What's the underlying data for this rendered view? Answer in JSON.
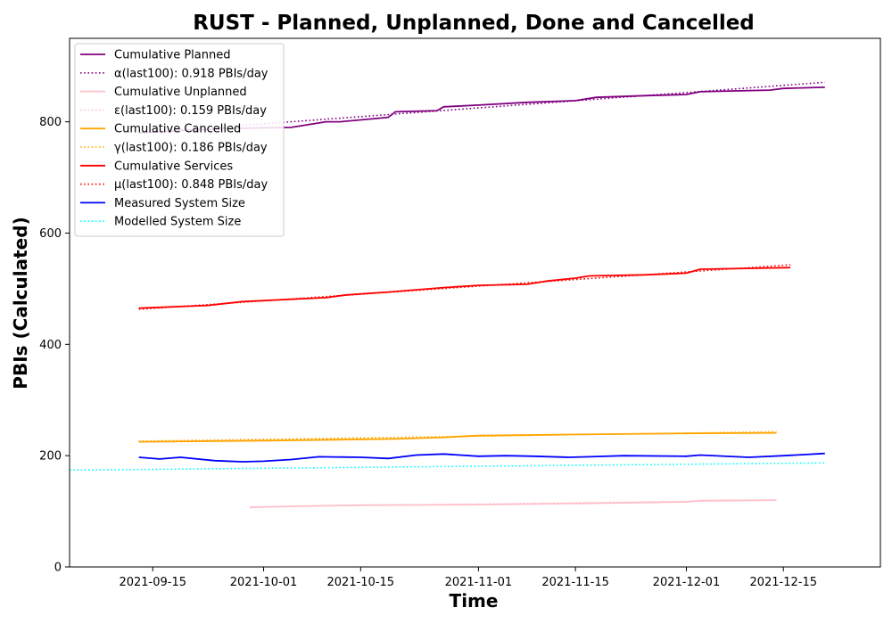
{
  "chart_data": {
    "type": "line",
    "title": "RUST - Planned, Unplanned, Done  and Cancelled",
    "xlabel": "Time",
    "ylabel": "PBIs (Calculated)",
    "xlim": [
      "2021-09-03",
      "2021-12-29"
    ],
    "ylim": [
      0,
      950
    ],
    "x_ticks": [
      "2021-09-15",
      "2021-10-01",
      "2021-10-15",
      "2021-11-01",
      "2021-11-15",
      "2021-12-01",
      "2021-12-15"
    ],
    "y_ticks": [
      0,
      200,
      400,
      600,
      800
    ],
    "grid": false,
    "legend_position": "top-left",
    "series": [
      {
        "name": "Cumulative Planned",
        "color": "#800080",
        "style": "solid",
        "x": [
          "2021-09-13",
          "2021-09-20",
          "2021-09-26",
          "2021-10-05",
          "2021-10-10",
          "2021-10-12",
          "2021-10-19",
          "2021-10-20",
          "2021-10-26",
          "2021-10-27",
          "2021-11-01",
          "2021-11-08",
          "2021-11-15",
          "2021-11-18",
          "2021-11-25",
          "2021-12-01",
          "2021-12-03",
          "2021-12-13",
          "2021-12-15",
          "2021-12-21"
        ],
        "y": [
          780,
          785,
          788,
          790,
          800,
          800,
          808,
          818,
          820,
          827,
          830,
          835,
          838,
          844,
          847,
          849,
          854,
          857,
          860,
          862
        ]
      },
      {
        "name": "α(last100): 0.918 PBIs/day",
        "color": "#800080",
        "style": "dotted",
        "x": [
          "2021-09-23",
          "2021-12-21"
        ],
        "y": [
          789,
          871
        ]
      },
      {
        "name": "Cumulative Unplanned",
        "color": "#ffc0cb",
        "style": "solid",
        "x": [
          "2021-09-29",
          "2021-10-05",
          "2021-10-15",
          "2021-11-01",
          "2021-11-15",
          "2021-12-01",
          "2021-12-03",
          "2021-12-14"
        ],
        "y": [
          107,
          109,
          111,
          112,
          114,
          117,
          119,
          120
        ]
      },
      {
        "name": "ε(last100): 0.159 PBIs/day",
        "color": "#ffc0cb",
        "style": "dotted",
        "x": [
          "2021-09-29",
          "2021-12-14"
        ],
        "y": [
          108,
          120
        ]
      },
      {
        "name": "Cumulative Cancelled",
        "color": "#ffa500",
        "style": "solid",
        "x": [
          "2021-09-13",
          "2021-10-01",
          "2021-10-20",
          "2021-10-27",
          "2021-11-01",
          "2021-11-15",
          "2021-12-01",
          "2021-12-14"
        ],
        "y": [
          225,
          227,
          230,
          233,
          236,
          238,
          240,
          241
        ]
      },
      {
        "name": "γ(last100): 0.186 PBIs/day",
        "color": "#ffa500",
        "style": "dotted",
        "x": [
          "2021-09-13",
          "2021-12-14"
        ],
        "y": [
          226,
          243
        ]
      },
      {
        "name": "Cumulative Services",
        "color": "#ff0000",
        "style": "solid",
        "x": [
          "2021-09-13",
          "2021-09-23",
          "2021-09-28",
          "2021-10-10",
          "2021-10-13",
          "2021-10-19",
          "2021-10-23",
          "2021-10-27",
          "2021-11-01",
          "2021-11-08",
          "2021-11-11",
          "2021-11-15",
          "2021-11-17",
          "2021-11-25",
          "2021-12-01",
          "2021-12-03",
          "2021-12-16"
        ],
        "y": [
          465,
          470,
          477,
          484,
          489,
          494,
          498,
          502,
          506,
          508,
          514,
          519,
          523,
          525,
          528,
          535,
          538
        ]
      },
      {
        "name": "μ(last100): 0.848 PBIs/day",
        "color": "#ff0000",
        "style": "dotted",
        "x": [
          "2021-09-13",
          "2021-12-16"
        ],
        "y": [
          463,
          543
        ]
      },
      {
        "name": "Measured System Size",
        "color": "#0000ff",
        "style": "solid",
        "x": [
          "2021-09-13",
          "2021-09-16",
          "2021-09-19",
          "2021-09-24",
          "2021-09-28",
          "2021-10-01",
          "2021-10-05",
          "2021-10-09",
          "2021-10-15",
          "2021-10-19",
          "2021-10-23",
          "2021-10-27",
          "2021-11-01",
          "2021-11-05",
          "2021-11-09",
          "2021-11-14",
          "2021-11-17",
          "2021-11-22",
          "2021-12-01",
          "2021-12-03",
          "2021-12-10",
          "2021-12-15",
          "2021-12-21"
        ],
        "y": [
          197,
          194,
          197,
          191,
          189,
          190,
          193,
          198,
          197,
          195,
          201,
          203,
          199,
          200,
          199,
          197,
          198,
          200,
          199,
          201,
          197,
          200,
          204
        ]
      },
      {
        "name": "Modelled System Size",
        "color": "#00ffff",
        "style": "dotted",
        "x": [
          "2021-09-03",
          "2021-12-21"
        ],
        "y": [
          174,
          187
        ]
      }
    ]
  }
}
